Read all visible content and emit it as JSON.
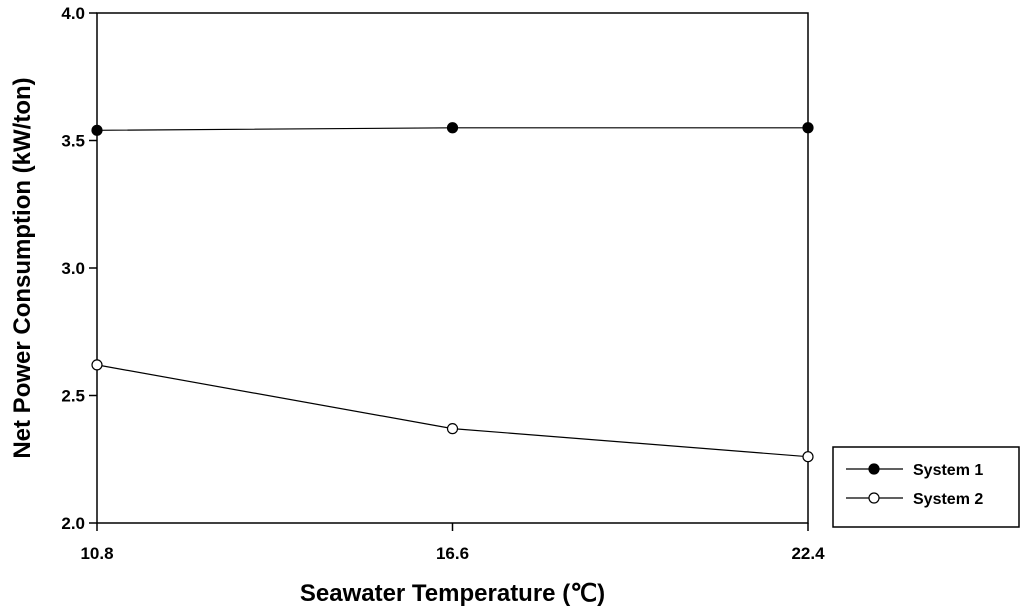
{
  "chart_data": {
    "type": "line",
    "title": "",
    "xlabel": "Seawater Temperature (℃)",
    "ylabel": "Net Power Consumption (kW/ton)",
    "x": [
      10.8,
      16.6,
      22.4
    ],
    "x_tick_labels": [
      "10.8",
      "16.6",
      "22.4"
    ],
    "y_tick_labels": [
      "2.0",
      "2.5",
      "3.0",
      "3.5",
      "4.0"
    ],
    "y_ticks": [
      2.0,
      2.5,
      3.0,
      3.5,
      4.0
    ],
    "xlim": [
      10.8,
      22.4
    ],
    "ylim": [
      2.0,
      4.0
    ],
    "grid": false,
    "legend_position": "bottom-right, outside plot",
    "series": [
      {
        "name": "System 1",
        "marker": "filled-circle",
        "color": "#000000",
        "values": [
          3.54,
          3.55,
          3.55
        ]
      },
      {
        "name": "System 2",
        "marker": "open-circle",
        "color": "#000000",
        "values": [
          2.62,
          2.37,
          2.26
        ]
      }
    ]
  }
}
